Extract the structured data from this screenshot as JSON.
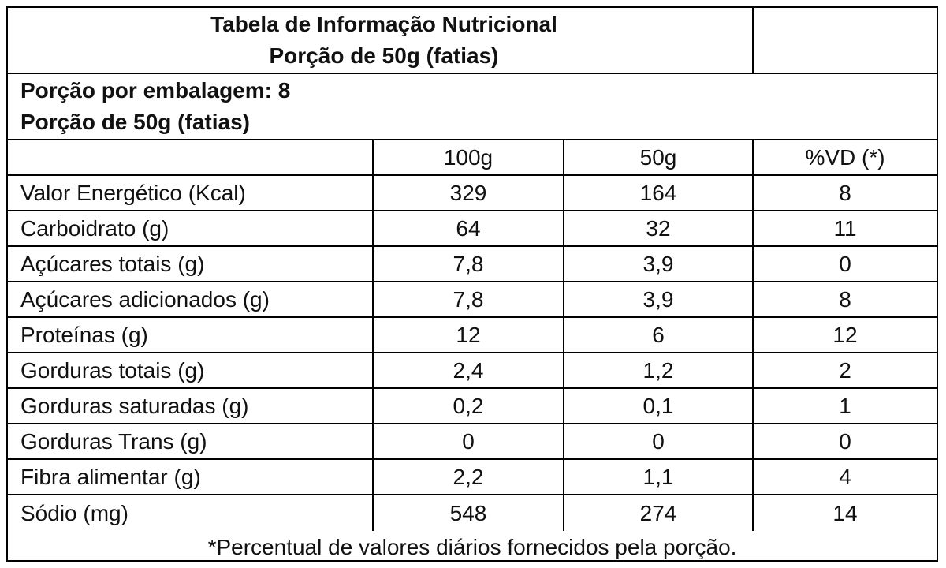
{
  "header": {
    "title": "Tabela de Informação Nutricional",
    "subtitle": "Porção de 50g (fatias)"
  },
  "serving": {
    "per_package": "Porção por embalagem: 8",
    "portion": "Porção de 50g (fatias)"
  },
  "columns": {
    "c100": "100g",
    "c50": "50g",
    "vd": "%VD (*)"
  },
  "rows": [
    {
      "label": "Valor Energético (Kcal)",
      "v100": "329",
      "v50": "164",
      "vd": "8"
    },
    {
      "label": "Carboidrato (g)",
      "v100": "64",
      "v50": "32",
      "vd": "11"
    },
    {
      "label": "Açúcares totais (g)",
      "v100": "7,8",
      "v50": "3,9",
      "vd": "0"
    },
    {
      "label": "Açúcares adicionados (g)",
      "v100": "7,8",
      "v50": "3,9",
      "vd": "8"
    },
    {
      "label": "Proteínas (g)",
      "v100": "12",
      "v50": "6",
      "vd": "12"
    },
    {
      "label": "Gorduras totais (g)",
      "v100": "2,4",
      "v50": "1,2",
      "vd": "2"
    },
    {
      "label": "Gorduras saturadas (g)",
      "v100": "0,2",
      "v50": "0,1",
      "vd": "1"
    },
    {
      "label": "Gorduras Trans (g)",
      "v100": "0",
      "v50": "0",
      "vd": "0"
    },
    {
      "label": "Fibra alimentar (g)",
      "v100": "2,2",
      "v50": "1,1",
      "vd": "4"
    },
    {
      "label": "Sódio (mg)",
      "v100": "548",
      "v50": "274",
      "vd": "14"
    }
  ],
  "footer": {
    "note": "*Percentual de valores diários fornecidos pela porção."
  }
}
